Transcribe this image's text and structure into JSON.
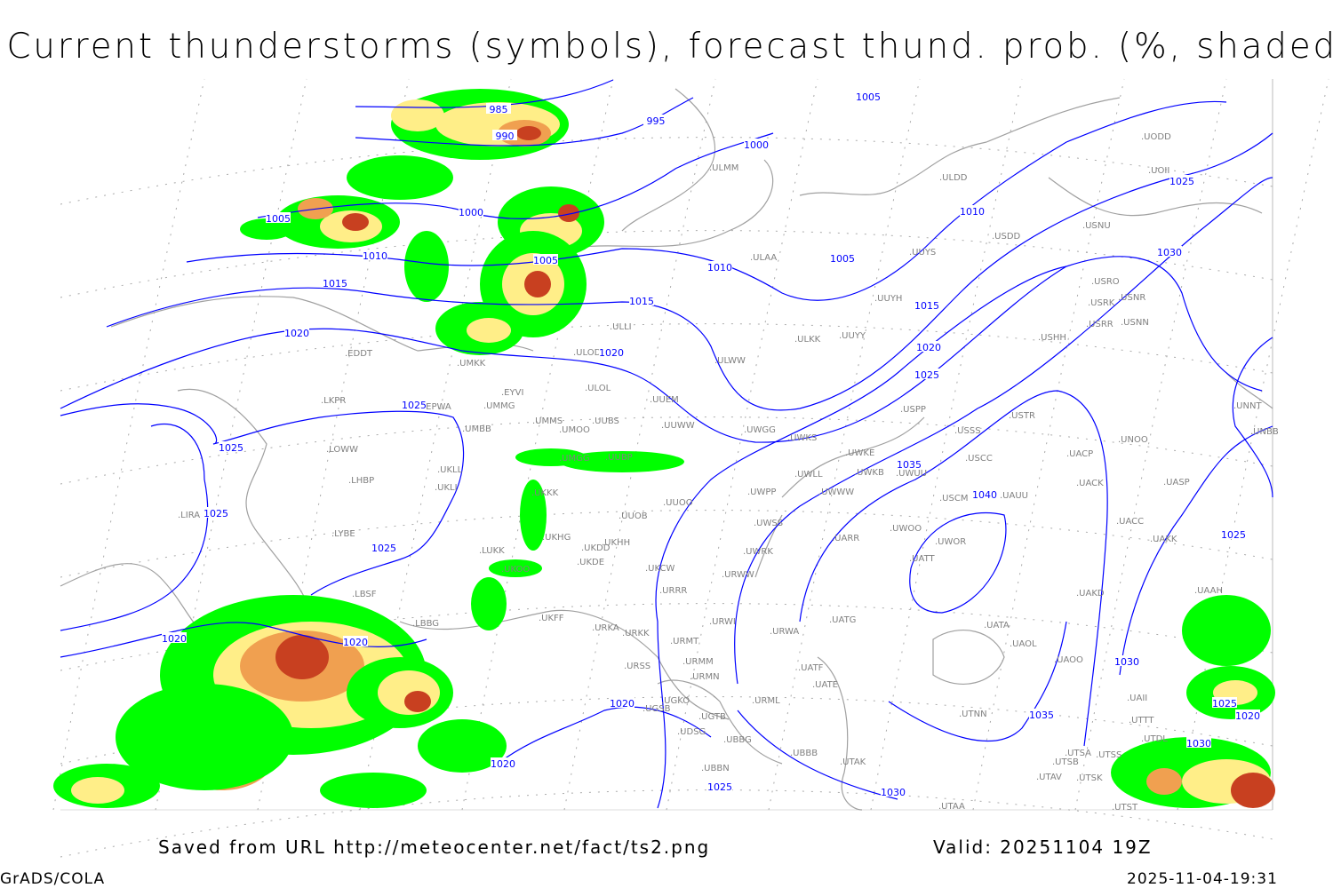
{
  "title": "Current thunderstorms (symbols), forecast thund. prob. (%, shaded)",
  "footer": {
    "source": "Saved from URL http://meteocenter.net/fact/ts2.png",
    "valid": "Valid: 20251104 19Z",
    "software": "GrADS/COLA",
    "timestamp": "2025-11-04-19:31"
  },
  "colors": {
    "isobar": "#0000ff",
    "coastline": "#a0a0a0",
    "prob_low": "#00ff00",
    "prob_mid": "#ffee88",
    "prob_high": "#f0a050",
    "prob_max": "#c84020"
  },
  "isobar_labels": [
    "985",
    "990",
    "995",
    "1000",
    "1005",
    "1005",
    "1000",
    "1010",
    "1005",
    "1010",
    "1005",
    "1010",
    "1025",
    "1030",
    "1015",
    "1015",
    "1015",
    "1020",
    "1020",
    "1020",
    "1025",
    "1025",
    "1025",
    "1025",
    "1035",
    "1040",
    "1025",
    "1025",
    "1020",
    "1020",
    "1030",
    "1020",
    "1035",
    "1025",
    "1020",
    "1030",
    "1020",
    "1025",
    "1030"
  ],
  "stations": [
    "ULMM",
    "ULDD",
    "UODD",
    "UOII",
    "USDD",
    "USNU",
    "ULAA",
    "UUYS",
    "USRO",
    "USRK",
    "USNR",
    "UUYH",
    "USRR",
    "USNN",
    "ULKK",
    "UUYY",
    "USHH",
    "ULLI",
    "EDDT",
    "ULOD",
    "UMKK",
    "ULWW",
    "EYVI",
    "ULOL",
    "UUEM",
    "EPWA",
    "LKPR",
    "UMMG",
    "UMMS",
    "UMOO",
    "UUBS",
    "UUWW",
    "UWGG",
    "UWKS",
    "USPP",
    "USSS",
    "USTR",
    "UMBB",
    "LOWW",
    "UKLL",
    "UMGG",
    "UUBP",
    "UWKE",
    "UWKB",
    "UWLL",
    "UWUU",
    "USCC",
    "UACP",
    "UNOO",
    "UNNT",
    "UNBB",
    "LHBP",
    "UKLI",
    "UKKK",
    "UWPP",
    "UWWW",
    "UACK",
    "UASP",
    "LIRA",
    "UUOO",
    "UUOB",
    "USCM",
    "UAUU",
    "UACC",
    "LYBE",
    "UKHG",
    "UKDD",
    "UKHH",
    "UWSS",
    "UWOO",
    "UWOR",
    "UARR",
    "UAKK",
    "LUKK",
    "UKDE",
    "UWRK",
    "UATT",
    "UKCW",
    "UKOO",
    "URWW",
    "URRR",
    "LBSF",
    "UAKD",
    "UAAH",
    "LBBG",
    "UKFF",
    "URKA",
    "URKK",
    "URWI",
    "UATG",
    "UATA",
    "URMT",
    "URWA",
    "UAOL",
    "UAOO",
    "URSS",
    "URMM",
    "UATF",
    "URMN",
    "UATE",
    "UGKO",
    "UGSB",
    "URML",
    "UGTB",
    "UTNN",
    "UDSG",
    "UBBG",
    "UTDL",
    "UBBB",
    "UTAK",
    "UBBN",
    "UTSA",
    "UTSB",
    "UTSS",
    "UTAV",
    "UTSK",
    "UTST",
    "UTAA",
    "UAII",
    "UTTT"
  ]
}
